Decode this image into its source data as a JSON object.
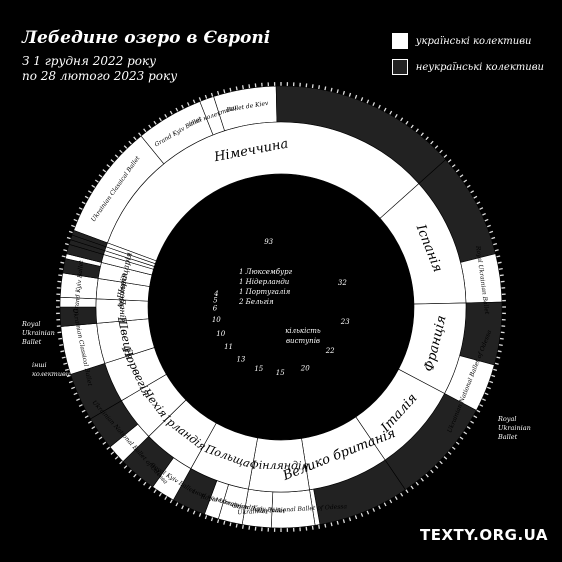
{
  "header": {
    "title": "Лебедине озеро в Європі",
    "subtitle_line1": "З 1 грудня 2022 року",
    "subtitle_line2": "по 28 лютого 2023 року"
  },
  "legend": {
    "ukrainian": {
      "label": "українські колективи",
      "color": "#ffffff"
    },
    "non_ukrainian": {
      "label": "неукраїнські колективи",
      "color": "#222222"
    }
  },
  "center": {
    "label_line1": "кількість",
    "label_line2": "виступів",
    "small_countries": [
      "1 Люксембург",
      "1 Нідерланди",
      "1 Португалія",
      "2 Бельгія"
    ]
  },
  "brand": "TEXTY.ORG.UA",
  "chart_data": {
    "type": "sunburst",
    "title": "Лебедине озеро в Європі",
    "inner_ring": "country",
    "outer_ring": "collective",
    "countries": [
      {
        "name": "Німеччина",
        "count": 93,
        "segments": [
          {
            "label": "Ukrainian Classical Ballet",
            "ukrainian": true,
            "value": 24
          },
          {
            "label": "Grand Kyiv Ballet",
            "ukrainian": true,
            "value": 14
          },
          {
            "label": "інші колективи",
            "ukrainian": true,
            "value": 3
          },
          {
            "label": "Ballet de Kiev",
            "ukrainian": true,
            "value": 13
          },
          {
            "label": "",
            "ukrainian": false,
            "value": 39
          }
        ]
      },
      {
        "name": "Іспанія",
        "count": 32,
        "segments": [
          {
            "label": "",
            "ukrainian": false,
            "value": 22
          },
          {
            "label": "Royal Ukrainian Ballet",
            "ukrainian": true,
            "value": 10
          }
        ]
      },
      {
        "name": "Франція",
        "count": 23,
        "segments": [
          {
            "label": "",
            "ukrainian": false,
            "value": 13
          },
          {
            "label": "Ukrainian National Ballet of Odessa",
            "ukrainian": true,
            "value": 10
          }
        ]
      },
      {
        "name": "Італія",
        "count": 22,
        "segments": [
          {
            "label": "",
            "ukrainian": false,
            "value": 22
          }
        ]
      },
      {
        "name": "Велико британія",
        "count": 20,
        "segments": [
          {
            "label": "",
            "ukrainian": false,
            "value": 19
          },
          {
            "label": "Royal Ukrainian Ballet",
            "ukrainian": true,
            "value": 1
          }
        ]
      },
      {
        "name": "Фінляндія",
        "count": 15,
        "segments": [
          {
            "label": "Ukrainian National Ballet of Odessa",
            "ukrainian": true,
            "value": 9
          },
          {
            "label": "Grand Kyiv Ballet",
            "ukrainian": true,
            "value": 6
          }
        ]
      },
      {
        "name": "Польща",
        "count": 15,
        "segments": [
          {
            "label": "Royal Ukrainian Ballet",
            "ukrainian": true,
            "value": 5
          },
          {
            "label": "інші колективи",
            "ukrainian": true,
            "value": 3
          },
          {
            "label": "",
            "ukrainian": false,
            "value": 7
          }
        ]
      },
      {
        "name": "Ірландія",
        "count": 13,
        "segments": [
          {
            "label": "Royal Kyiv Ballet",
            "ukrainian": true,
            "value": 5
          },
          {
            "label": "",
            "ukrainian": false,
            "value": 8
          }
        ]
      },
      {
        "name": "Чехія",
        "count": 11,
        "segments": [
          {
            "label": "Ukrainian National Ballet of Odessa",
            "ukrainian": true,
            "value": 4
          },
          {
            "label": "",
            "ukrainian": false,
            "value": 7
          }
        ]
      },
      {
        "name": "Норвегія",
        "count": 10,
        "segments": [
          {
            "label": "",
            "ukrainian": false,
            "value": 10
          }
        ]
      },
      {
        "name": "Швеція",
        "count": 10,
        "segments": [
          {
            "label": "Ukrainian Classical Ballet",
            "ukrainian": true,
            "value": 10
          }
        ]
      },
      {
        "name": "Данія",
        "count": 6,
        "segments": [
          {
            "label": "",
            "ukrainian": false,
            "value": 4
          },
          {
            "label": "інші колективи",
            "ukrainian": true,
            "value": 2
          }
        ]
      },
      {
        "name": "Австрія",
        "count": 5,
        "segments": [
          {
            "label": "Grand Kyiv Ballet",
            "ukrainian": true,
            "value": 5
          }
        ]
      },
      {
        "name": "Швейцарія",
        "count": 4,
        "segments": [
          {
            "label": "",
            "ukrainian": false,
            "value": 3
          },
          {
            "label": "Royal Ukrainian Ballet",
            "ukrainian": true,
            "value": 1
          }
        ]
      },
      {
        "name": "Бельгія",
        "count": 2,
        "segments": [
          {
            "label": "",
            "ukrainian": false,
            "value": 2
          }
        ]
      },
      {
        "name": "Португалія",
        "count": 1,
        "segments": [
          {
            "label": "",
            "ukrainian": false,
            "value": 1
          }
        ]
      },
      {
        "name": "Нідерланди",
        "count": 1,
        "segments": [
          {
            "label": "",
            "ukrainian": false,
            "value": 1
          }
        ]
      },
      {
        "name": "Люксембург",
        "count": 1,
        "segments": [
          {
            "label": "",
            "ukrainian": false,
            "value": 1
          }
        ]
      }
    ],
    "outside_labels": [
      {
        "text": "Royal Ukrainian Ballet",
        "country": "Швейцарія"
      },
      {
        "text": "інші колективи",
        "country": "Данія"
      },
      {
        "text": "Royal Ukrainian Ballet",
        "country": "Велико британія"
      }
    ]
  }
}
